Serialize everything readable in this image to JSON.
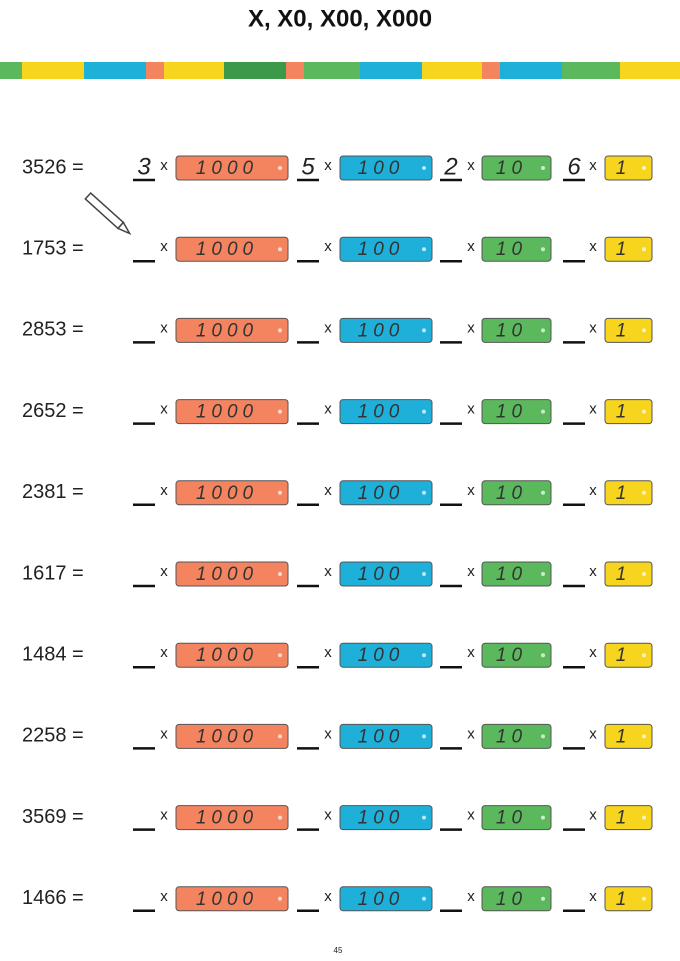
{
  "title": "X, X0, X00, X000",
  "times": "x",
  "blocks": [
    {
      "label": "1000",
      "color": "#f4845f"
    },
    {
      "label": "100",
      "color": "#1fb0da"
    },
    {
      "label": "10",
      "color": "#5cb85c"
    },
    {
      "label": "1",
      "color": "#f7d41e"
    }
  ],
  "rows": [
    {
      "label": "3526 =",
      "answers": [
        "3",
        "5",
        "2",
        "6"
      ]
    },
    {
      "label": "1753 ="
    },
    {
      "label": "2853 ="
    },
    {
      "label": "2652 ="
    },
    {
      "label": "2381 ="
    },
    {
      "label": "1617 ="
    },
    {
      "label": "1484 ="
    },
    {
      "label": "2258 ="
    },
    {
      "label": "3569 ="
    },
    {
      "label": "1466 ="
    }
  ],
  "page_number": "45"
}
